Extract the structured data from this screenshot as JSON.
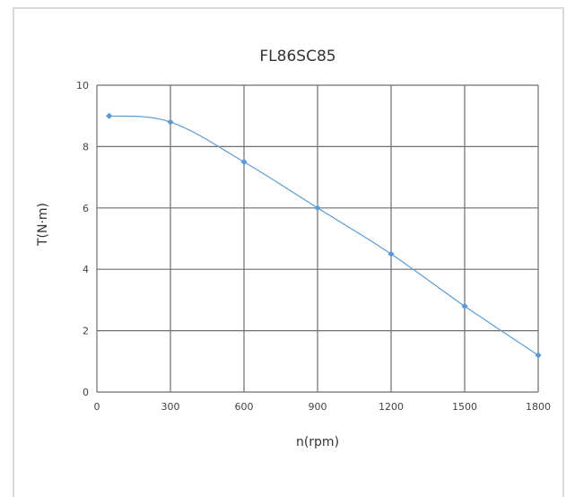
{
  "chart_data": {
    "type": "line",
    "title": "FL86SC85",
    "xlabel": "n(rpm)",
    "ylabel": "T(N·m)",
    "xlim": [
      0,
      1800
    ],
    "ylim": [
      0,
      10
    ],
    "x_ticks": [
      "0",
      "300",
      "600",
      "900",
      "1200",
      "1500",
      "1800"
    ],
    "y_ticks": [
      "0",
      "2",
      "4",
      "6",
      "8",
      "10"
    ],
    "grid": true,
    "legend": "none",
    "series": [
      {
        "color": "#5b9bd5",
        "marker": "diamond",
        "smooth": true,
        "x": [
          50,
          300,
          600,
          900,
          1200,
          1500,
          1800
        ],
        "y": [
          9.0,
          8.8,
          7.5,
          6.0,
          4.5,
          2.8,
          1.2
        ]
      }
    ]
  }
}
